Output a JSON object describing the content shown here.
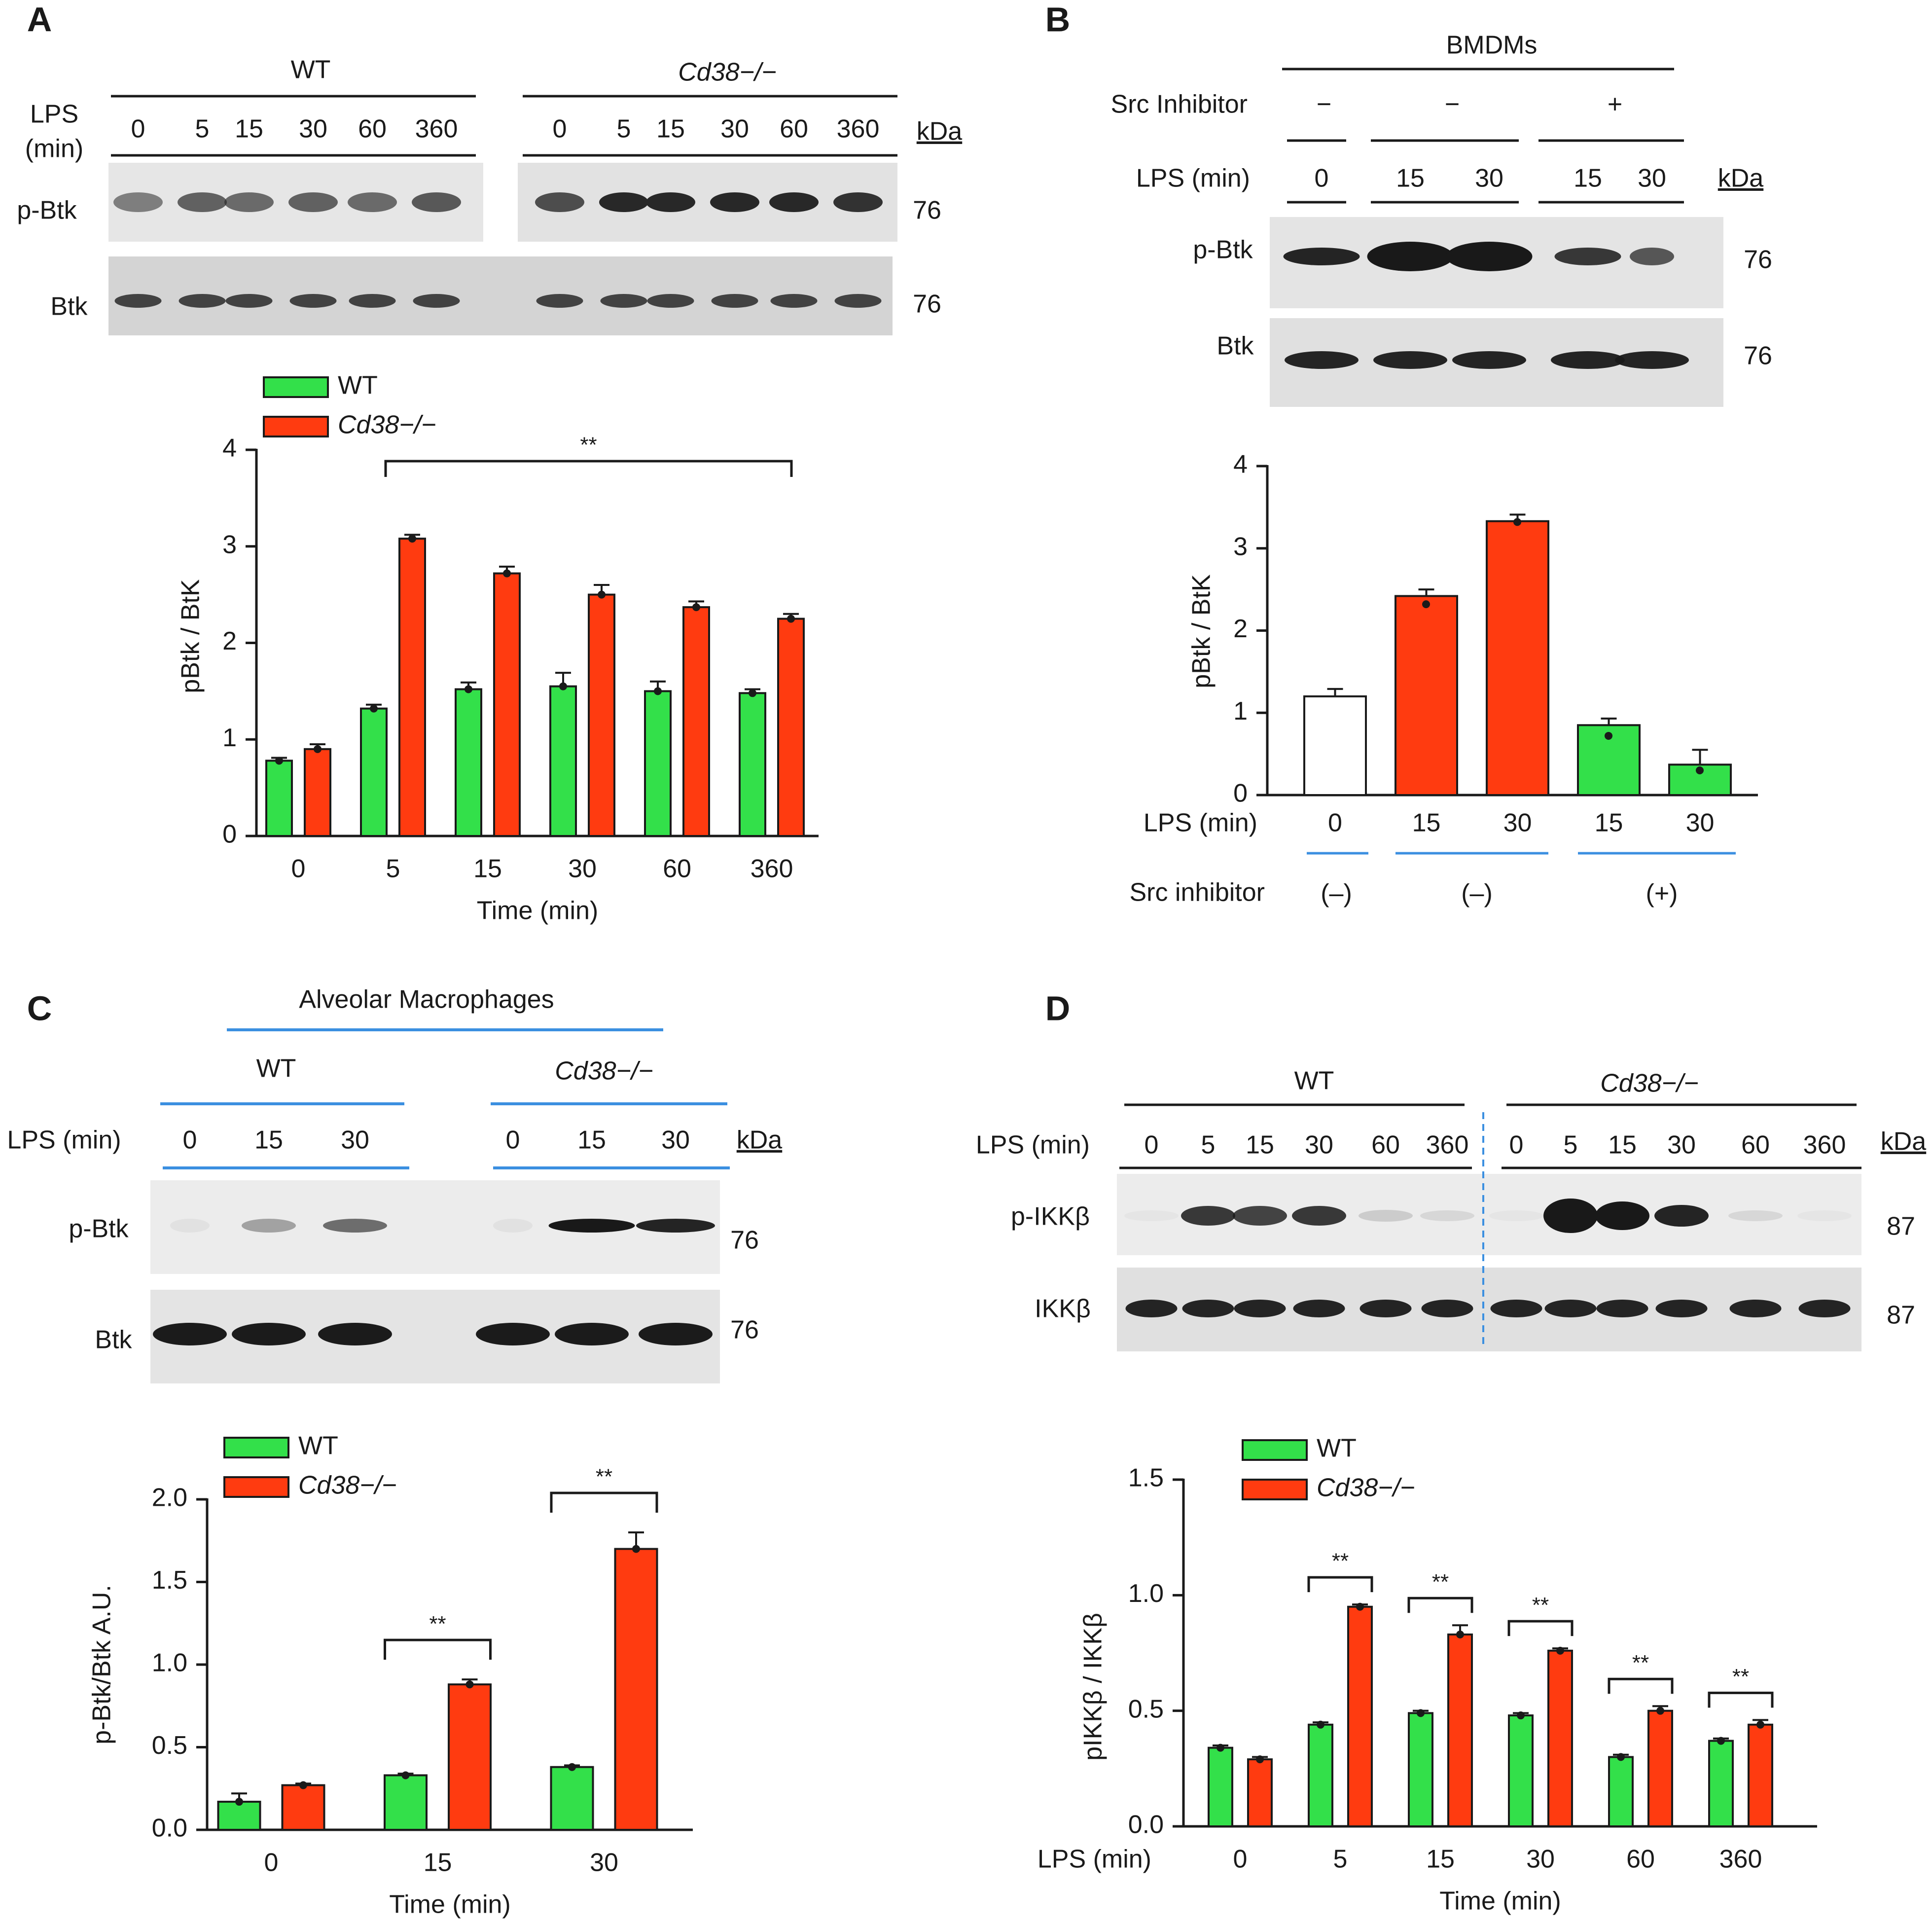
{
  "colors": {
    "wt": "#33e04a",
    "ko": "#ff3b10",
    "control": "#ffffff",
    "blue_line": "#3b8fe0",
    "edge": "#1a1a1a"
  },
  "panelA": {
    "letter": "A",
    "blot": {
      "groups": [
        "WT",
        "Cd38−/−"
      ],
      "lps_label_1": "LPS",
      "lps_label_2": "(min)",
      "lanes": [
        "0",
        "5",
        "15",
        "30",
        "60",
        "360",
        "0",
        "5",
        "15",
        "30",
        "60",
        "360"
      ],
      "kda": "kDa",
      "rows": [
        {
          "label": "p-Btk",
          "mw": "76"
        },
        {
          "label": "Btk",
          "mw": "76"
        }
      ]
    },
    "chart_data": {
      "type": "bar",
      "title": "",
      "xlabel": "Time (min)",
      "ylabel": "pBtk / BtK",
      "ylim": [
        0,
        4
      ],
      "yticks": [
        "0",
        "1",
        "2",
        "3",
        "4"
      ],
      "categories": [
        "0",
        "5",
        "15",
        "30",
        "60",
        "360"
      ],
      "legend": [
        "WT",
        "Cd38−/−"
      ],
      "series": [
        {
          "name": "WT",
          "values": [
            0.78,
            1.32,
            1.52,
            1.55,
            1.5,
            1.48
          ],
          "err": [
            0.03,
            0.04,
            0.07,
            0.14,
            0.1,
            0.04
          ]
        },
        {
          "name": "Cd38−/−",
          "values": [
            0.9,
            3.08,
            2.72,
            2.5,
            2.37,
            2.25
          ],
          "err": [
            0.05,
            0.04,
            0.07,
            0.1,
            0.06,
            0.05
          ]
        }
      ],
      "significance": [
        {
          "from": "5",
          "to": "360",
          "label": "**"
        }
      ]
    }
  },
  "panelB": {
    "letter": "B",
    "blot": {
      "cell_type": "BMDMs",
      "src_label": "Src Inhibitor",
      "src_signs": [
        "−",
        "−",
        "+"
      ],
      "lps_label": "LPS (min)",
      "lanes": [
        "0",
        "15",
        "30",
        "15",
        "30"
      ],
      "kda": "kDa",
      "rows": [
        {
          "label": "p-Btk",
          "mw": "76"
        },
        {
          "label": "Btk",
          "mw": "76"
        }
      ]
    },
    "chart_data": {
      "type": "bar",
      "title": "",
      "xlabel": "LPS (min)",
      "ylabel": "pBtk / BtK",
      "ylim": [
        0,
        4
      ],
      "yticks": [
        "0",
        "1",
        "2",
        "3",
        "4"
      ],
      "categories": [
        "0",
        "15",
        "30",
        "15",
        "30"
      ],
      "values": [
        1.2,
        2.42,
        3.33,
        0.85,
        0.37
      ],
      "err": [
        0.09,
        0.08,
        0.08,
        0.08,
        0.18
      ],
      "bar_fill": [
        "control",
        "ko",
        "ko",
        "wt",
        "wt"
      ],
      "group_label": "Src inhibitor",
      "groups": [
        "(–)",
        "(–)",
        "(+)"
      ]
    }
  },
  "panelC": {
    "letter": "C",
    "blot": {
      "cell_type": "Alveolar Macrophages",
      "groups": [
        "WT",
        "Cd38−/−"
      ],
      "lps_label": "LPS (min)",
      "lanes": [
        "0",
        "15",
        "30",
        "0",
        "15",
        "30"
      ],
      "kda": "kDa",
      "rows": [
        {
          "label": "p-Btk",
          "mw": "76"
        },
        {
          "label": "Btk",
          "mw": "76"
        }
      ]
    },
    "chart_data": {
      "type": "bar",
      "title": "",
      "xlabel": "Time (min)",
      "ylabel": "p-Btk/Btk A.U.",
      "ylim": [
        0,
        2
      ],
      "yticks": [
        "0.0",
        "0.5",
        "1.0",
        "1.5",
        "2.0"
      ],
      "categories": [
        "0",
        "15",
        "30"
      ],
      "legend": [
        "WT",
        "Cd38−/−"
      ],
      "series": [
        {
          "name": "WT",
          "values": [
            0.17,
            0.33,
            0.38
          ],
          "err": [
            0.05,
            0.01,
            0.01
          ]
        },
        {
          "name": "Cd38−/−",
          "values": [
            0.27,
            0.88,
            1.7
          ],
          "err": [
            0.01,
            0.03,
            0.1
          ]
        }
      ],
      "significance": [
        {
          "category": "15",
          "label": "**"
        },
        {
          "category": "30",
          "label": "**"
        }
      ]
    }
  },
  "panelD": {
    "letter": "D",
    "blot": {
      "groups": [
        "WT",
        "Cd38−/−"
      ],
      "lps_label": "LPS (min)",
      "lanes": [
        "0",
        "5",
        "15",
        "30",
        "60",
        "360",
        "0",
        "5",
        "15",
        "30",
        "60",
        "360"
      ],
      "kda": "kDa",
      "rows": [
        {
          "label": "p-IKKβ",
          "mw": "87"
        },
        {
          "label": "IKKβ",
          "mw": "87"
        }
      ]
    },
    "chart_data": {
      "type": "bar",
      "title": "",
      "xlabel": "Time (min)",
      "xlabel_left": "LPS (min)",
      "ylabel": "pIKKβ / IKKβ",
      "ylim": [
        0,
        1.5
      ],
      "yticks": [
        "0.0",
        "0.5",
        "1.0",
        "1.5"
      ],
      "categories": [
        "0",
        "5",
        "15",
        "30",
        "60",
        "360"
      ],
      "legend": [
        "WT",
        "Cd38−/−"
      ],
      "series": [
        {
          "name": "WT",
          "values": [
            0.34,
            0.44,
            0.49,
            0.48,
            0.3,
            0.37
          ],
          "err": [
            0.01,
            0.01,
            0.01,
            0.01,
            0.01,
            0.01
          ]
        },
        {
          "name": "Cd38−/−",
          "values": [
            0.29,
            0.95,
            0.83,
            0.76,
            0.5,
            0.44
          ],
          "err": [
            0.01,
            0.01,
            0.04,
            0.01,
            0.02,
            0.02
          ]
        }
      ],
      "significance": [
        {
          "category": "5",
          "label": "**"
        },
        {
          "category": "15",
          "label": "**"
        },
        {
          "category": "30",
          "label": "**"
        },
        {
          "category": "60",
          "label": "**"
        },
        {
          "category": "360",
          "label": "**"
        }
      ]
    }
  }
}
